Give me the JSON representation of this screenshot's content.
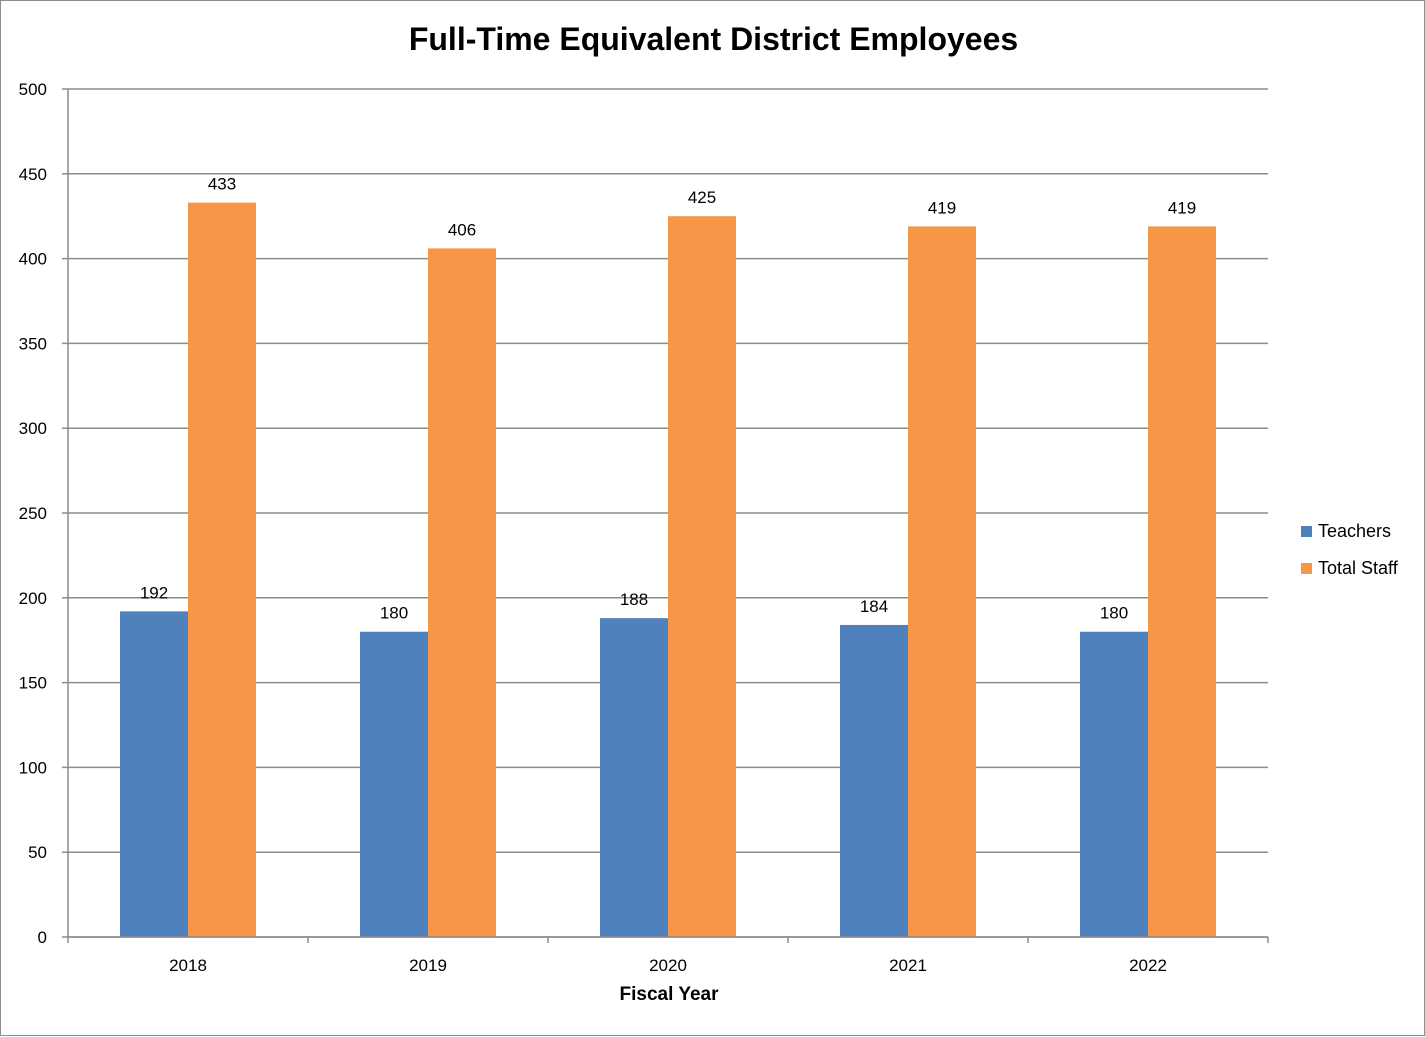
{
  "chart_data": {
    "type": "bar",
    "title": "Full-Time Equivalent District Employees",
    "xlabel": "Fiscal Year",
    "ylabel": "",
    "categories": [
      "2018",
      "2019",
      "2020",
      "2021",
      "2022"
    ],
    "series": [
      {
        "name": "Teachers",
        "values": [
          192,
          180,
          188,
          184,
          180
        ],
        "color": "#4f81bd"
      },
      {
        "name": "Total Staff",
        "values": [
          433,
          406,
          425,
          419,
          419
        ],
        "color": "#f79646"
      }
    ],
    "ylim": [
      0,
      500
    ],
    "yticks": [
      0,
      50,
      100,
      150,
      200,
      250,
      300,
      350,
      400,
      450,
      500
    ],
    "grid": true,
    "legend_position": "right",
    "data_labels": true
  },
  "colors": {
    "gridline": "#8c8c8c",
    "axis": "#8c8c8c",
    "teachers": "#4f81bd",
    "total_staff": "#f79646"
  }
}
